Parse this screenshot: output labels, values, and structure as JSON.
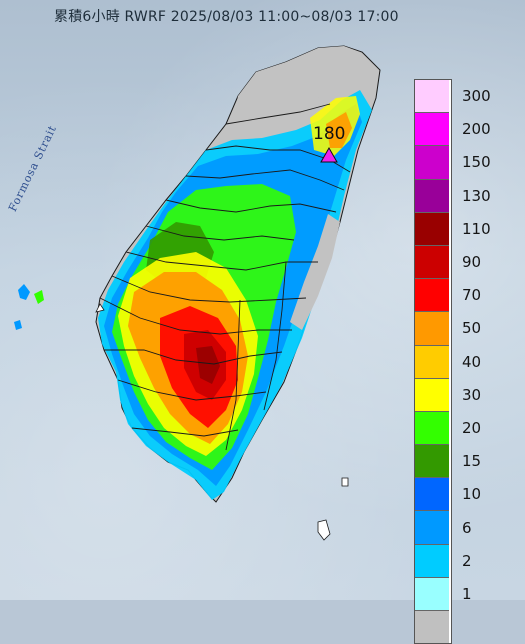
{
  "title": "累積6小時 RWRF 2025/08/03 11:00~08/03 17:00",
  "strait_label": "Formosa Strait",
  "peak": {
    "value": "180",
    "marker_color": "#ee22ee"
  },
  "legend": [
    {
      "label": "300",
      "color": "#ffccff"
    },
    {
      "label": "200",
      "color": "#ff00ff"
    },
    {
      "label": "150",
      "color": "#cc00cc"
    },
    {
      "label": "130",
      "color": "#990099"
    },
    {
      "label": "110",
      "color": "#990000"
    },
    {
      "label": "90",
      "color": "#cc0000"
    },
    {
      "label": "70",
      "color": "#ff0000"
    },
    {
      "label": "50",
      "color": "#ff9900"
    },
    {
      "label": "40",
      "color": "#ffcc00"
    },
    {
      "label": "30",
      "color": "#ffff00"
    },
    {
      "label": "20",
      "color": "#33ff00"
    },
    {
      "label": "15",
      "color": "#339900"
    },
    {
      "label": "10",
      "color": "#0066ff"
    },
    {
      "label": "6",
      "color": "#0099ff"
    },
    {
      "label": "2",
      "color": "#00ccff"
    },
    {
      "label": "1",
      "color": "#99ffff"
    },
    {
      "label": "",
      "color": "#c0c0c0"
    }
  ],
  "colors": {
    "land_no_rain": "#c2c2c2",
    "county_border": "#1a1a1a"
  }
}
